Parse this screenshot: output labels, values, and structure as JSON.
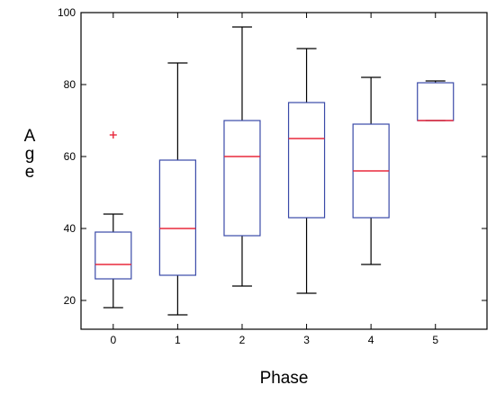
{
  "chart_data": {
    "type": "box",
    "xlabel": "Phase",
    "ylabel_letters": [
      "A",
      "g",
      "e"
    ],
    "ylim": [
      12,
      100
    ],
    "yticks": [
      20,
      40,
      60,
      80,
      100
    ],
    "categories": [
      "0",
      "1",
      "2",
      "3",
      "4",
      "5"
    ],
    "boxes": [
      {
        "category": "0",
        "whisker_low": 18,
        "q1": 26,
        "median": 30,
        "q3": 39,
        "whisker_high": 44,
        "outliers": [
          66
        ]
      },
      {
        "category": "1",
        "whisker_low": 16,
        "q1": 27,
        "median": 40,
        "q3": 59,
        "whisker_high": 86,
        "outliers": []
      },
      {
        "category": "2",
        "whisker_low": 24,
        "q1": 38,
        "median": 60,
        "q3": 70,
        "whisker_high": 96,
        "outliers": []
      },
      {
        "category": "3",
        "whisker_low": 22,
        "q1": 43,
        "median": 65,
        "q3": 75,
        "whisker_high": 90,
        "outliers": []
      },
      {
        "category": "4",
        "whisker_low": 30,
        "q1": 43,
        "median": 56,
        "q3": 69,
        "whisker_high": 82,
        "outliers": []
      },
      {
        "category": "5",
        "whisker_low": 70,
        "q1": 70,
        "median": 70,
        "q3": 80.5,
        "whisker_high": 81,
        "outliers": []
      }
    ],
    "colors": {
      "box": "#3a4aa8",
      "median": "#e8283c",
      "whisker": "#000000",
      "outlier": "#e8283c"
    }
  }
}
